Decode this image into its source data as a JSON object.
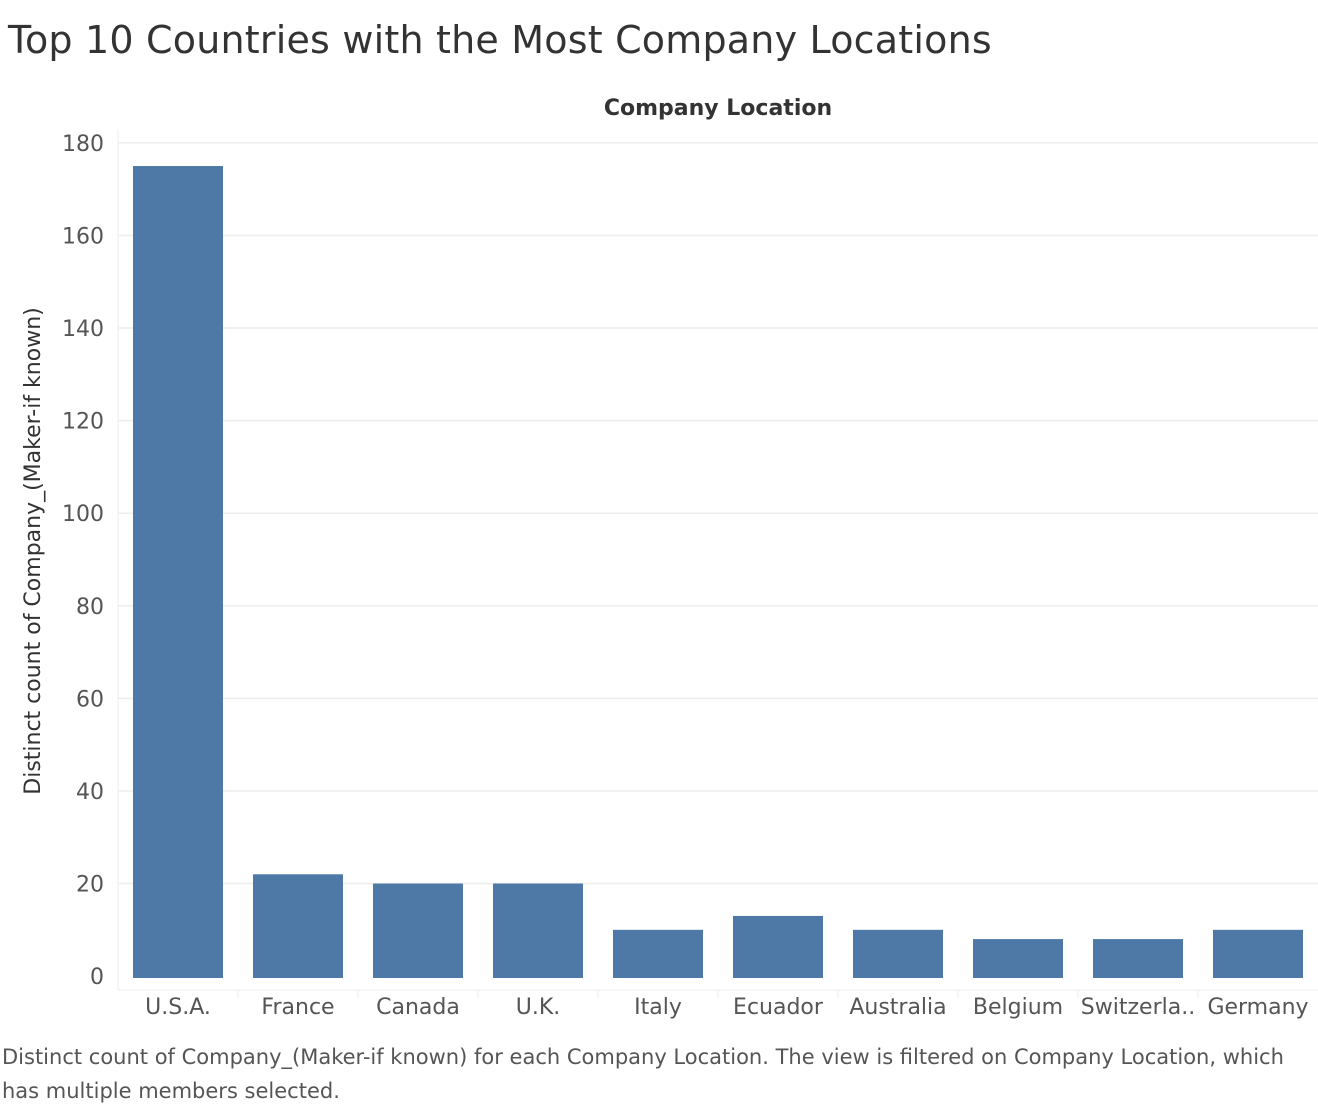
{
  "title": "Top 10 Countries with the Most Company Locations",
  "caption": "Distinct count of Company_(Maker-if known) for each Company Location. The view is filtered on Company Location, which has multiple members selected.",
  "colors": {
    "bar": "#4e79a7",
    "grid": "#eeeeee",
    "axis_text": "#555555",
    "label_text": "#333333"
  },
  "chart_data": {
    "type": "bar",
    "title": "Company Location",
    "xlabel": "Company Location",
    "ylabel": "Distinct count of Company_(Maker-if known)",
    "categories": [
      "U.S.A.",
      "France",
      "Canada",
      "U.K.",
      "Italy",
      "Ecuador",
      "Australia",
      "Belgium",
      "Switzerla..",
      "Germany"
    ],
    "values": [
      175,
      22,
      20,
      20,
      10,
      13,
      10,
      8,
      8,
      10
    ],
    "ylim": [
      -3,
      183
    ],
    "yticks": [
      0,
      20,
      40,
      60,
      80,
      100,
      120,
      140,
      160,
      180
    ],
    "grid": true,
    "legend": "none"
  }
}
